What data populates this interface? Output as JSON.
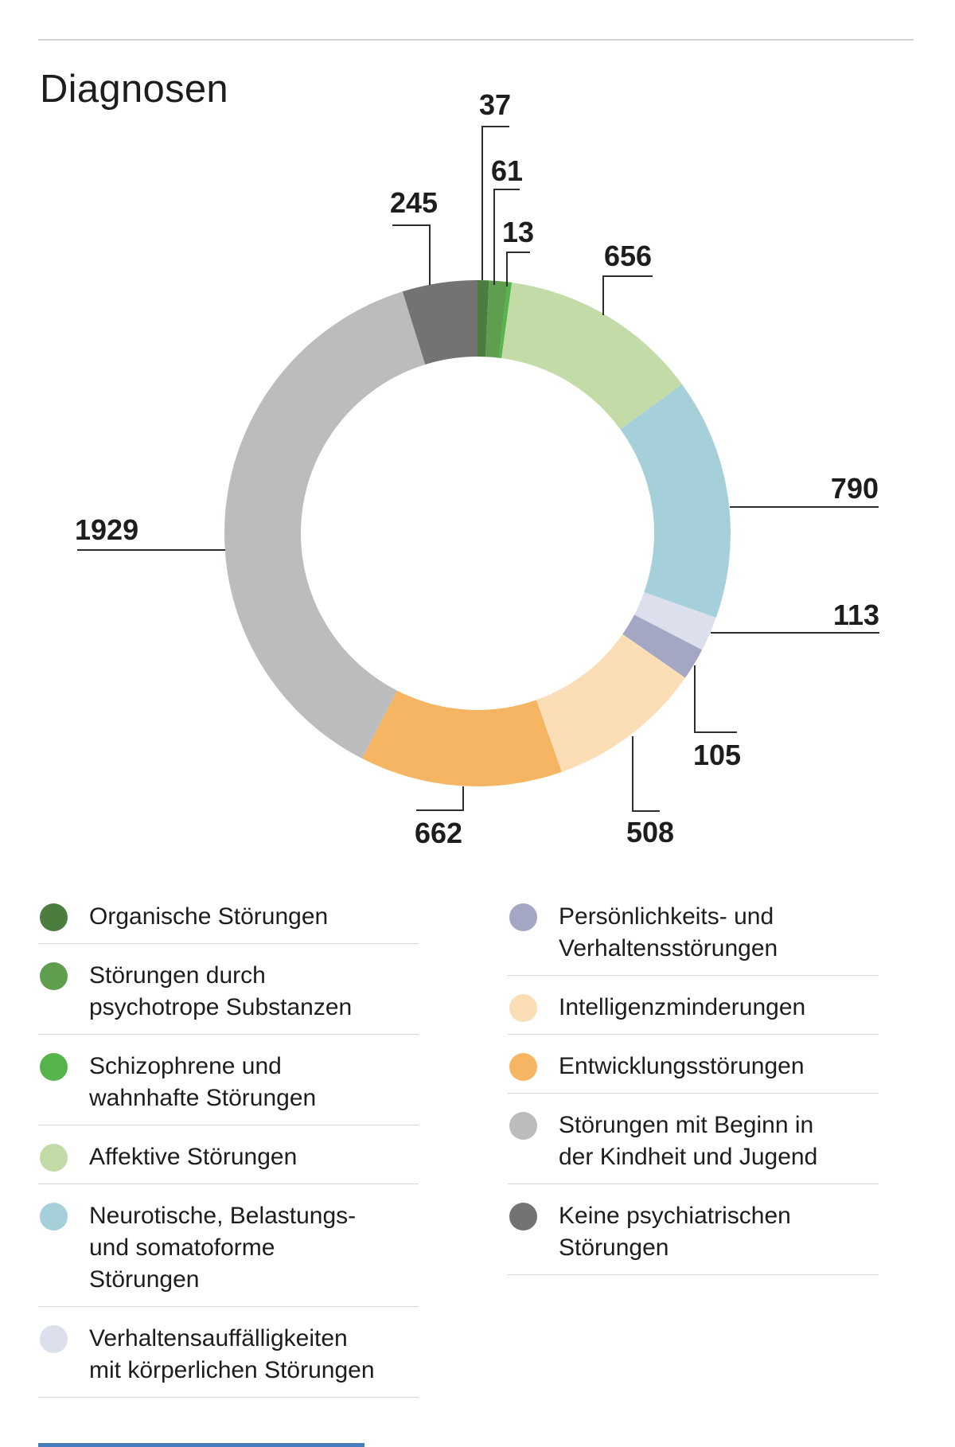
{
  "page": {
    "title": "Diagnosen"
  },
  "chart_data": {
    "type": "donut",
    "title": "Diagnosen",
    "legend_position": "bottom-two-columns",
    "segments": [
      {
        "label": "Organische Störungen",
        "legend_lines": [
          "Organische Störungen"
        ],
        "value": 37,
        "color": "#4b7d3e"
      },
      {
        "label": "Störungen durch psychotrope Substanzen",
        "legend_lines": [
          "Störungen durch",
          "psychotrope Substanzen"
        ],
        "value": 61,
        "color": "#5f9e4f"
      },
      {
        "label": "Schizophrene und wahnhafte Störungen",
        "legend_lines": [
          "Schizophrene und",
          "wahnhafte Störungen"
        ],
        "value": 13,
        "color": "#55b44a"
      },
      {
        "label": "Affektive Störungen",
        "legend_lines": [
          "Affektive Störungen"
        ],
        "value": 656,
        "color": "#c3dba7"
      },
      {
        "label": "Neurotische, Belastungs- und somatoforme Störungen",
        "legend_lines": [
          "Neurotische, Belastungs-",
          "und somatoforme",
          "Störungen"
        ],
        "value": 790,
        "color": "#a6d0d9"
      },
      {
        "label": "Verhaltensauffälligkeiten mit körperlichen Störungen",
        "legend_lines": [
          "Verhaltensauffälligkeiten",
          "mit körperlichen Störungen"
        ],
        "value": 113,
        "color": "#dcdfec"
      },
      {
        "label": "Persönlichkeits- und Verhaltensstörungen",
        "legend_lines": [
          "Persönlichkeits- und",
          "Verhaltensstörungen"
        ],
        "value": 105,
        "color": "#a3a7c4"
      },
      {
        "label": "Intelligenzminderungen",
        "legend_lines": [
          "Intelligenzminderungen"
        ],
        "value": 508,
        "color": "#fbddb6"
      },
      {
        "label": "Entwicklungsstörungen",
        "legend_lines": [
          "Entwicklungsstörungen"
        ],
        "value": 662,
        "color": "#f6b562"
      },
      {
        "label": "Störungen mit Beginn in der Kindheit und Jugend",
        "legend_lines": [
          "Störungen mit Beginn in",
          "der Kindheit und Jugend"
        ],
        "value": 1929,
        "color": "#bbbcbe"
      },
      {
        "label": "Keine psychiatrischen Störungen",
        "legend_lines": [
          "Keine psychiatrischen",
          "Störungen"
        ],
        "value": 245,
        "color": "#757371"
      }
    ]
  }
}
